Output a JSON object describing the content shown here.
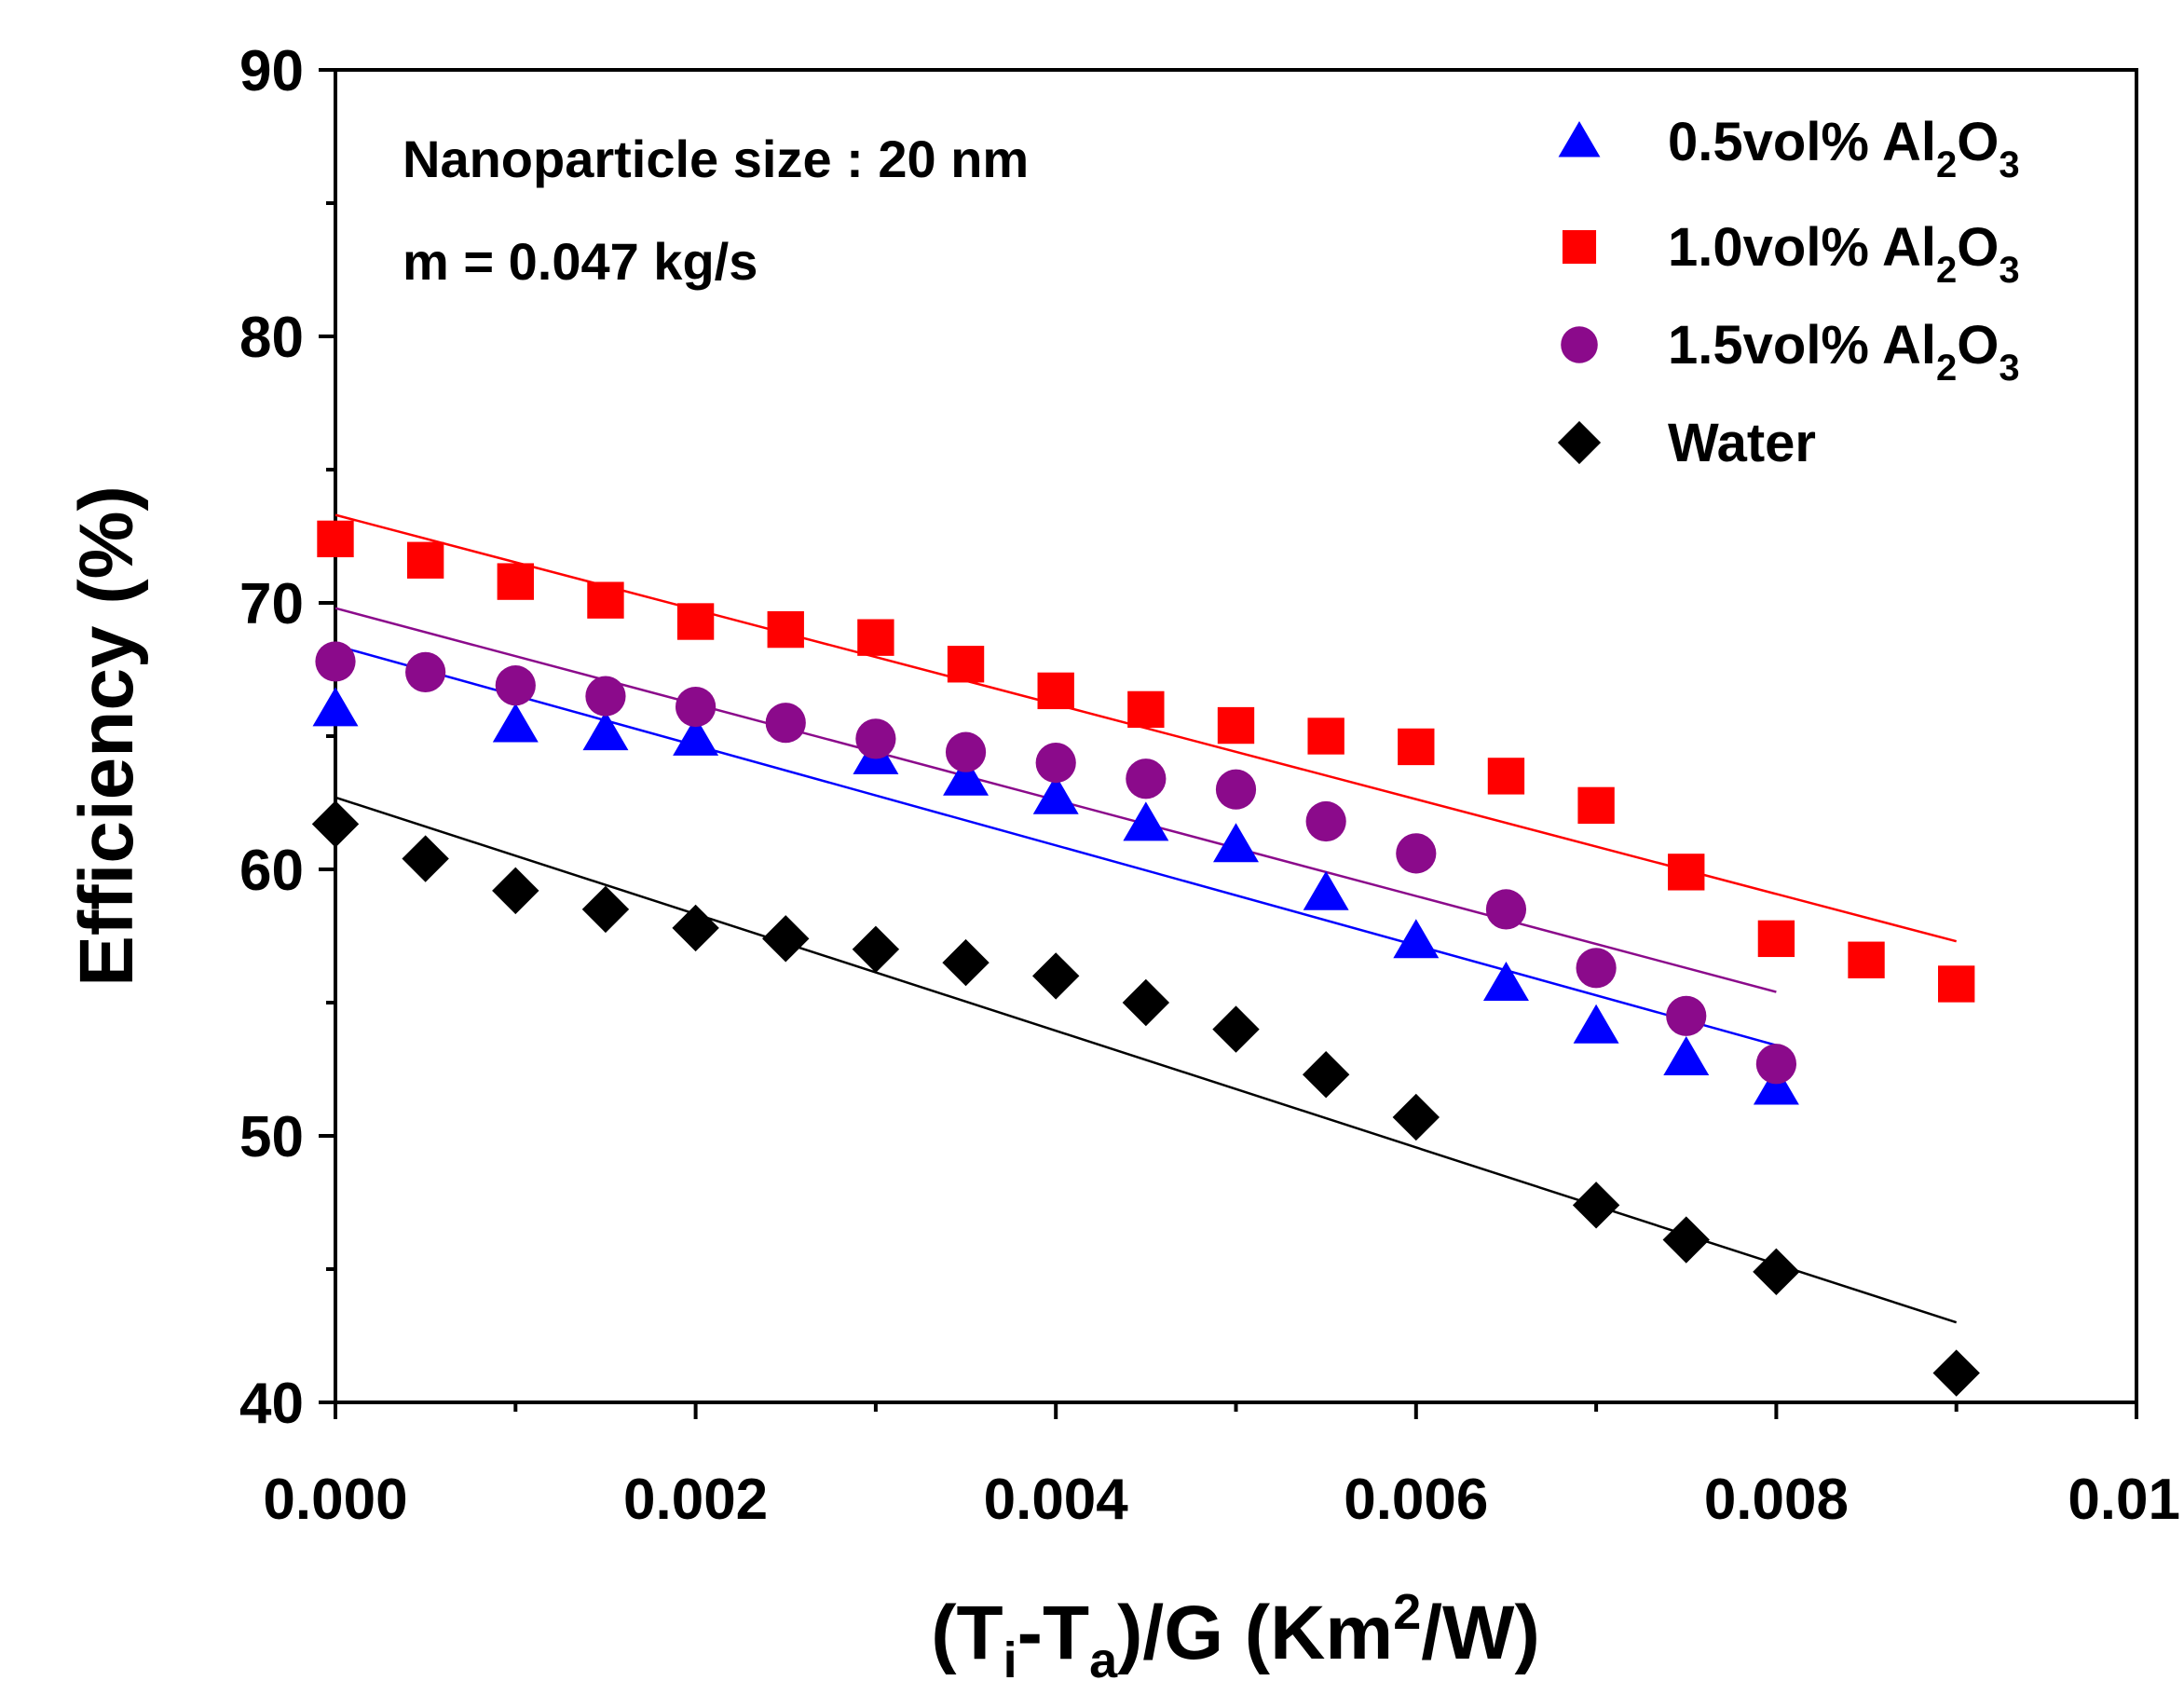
{
  "chart_data": {
    "type": "scatter",
    "title": "",
    "xlabel": {
      "pre": "(T",
      "sub1": "i",
      "mid": "-T",
      "sub2": "a",
      "post1": ")/G (Km",
      "sup": "2",
      "post2": "/W)"
    },
    "ylabel": "Efficiency (%)",
    "xlim": [
      0,
      0.01
    ],
    "ylim": [
      40,
      90
    ],
    "x_ticks": [
      "0.000",
      "0.002",
      "0.004",
      "0.006",
      "0.008",
      "0.01"
    ],
    "x_tick_values": [
      0,
      0.002,
      0.004,
      0.006,
      0.008,
      0.01
    ],
    "y_ticks": [
      "40",
      "50",
      "60",
      "70",
      "80",
      "90"
    ],
    "y_tick_values": [
      40,
      50,
      60,
      70,
      80,
      90
    ],
    "annotations": [
      "Nanoparticle size : 20 nm",
      "m = 0.047 kg/s"
    ],
    "legend_position": "top-right",
    "series": [
      {
        "name": {
          "pre": "0.5vol% Al",
          "sub1": "2",
          "mid": "O",
          "sub2": "3"
        },
        "marker": "triangle",
        "color": "#0000ff",
        "x": [
          0,
          0.001,
          0.0015,
          0.002,
          0.003,
          0.0035,
          0.004,
          0.0045,
          0.005,
          0.0055,
          0.006,
          0.0065,
          0.007,
          0.0075,
          0.008
        ],
        "y": [
          66.0,
          65.4,
          65.1,
          64.9,
          64.2,
          63.4,
          62.7,
          61.7,
          60.9,
          59.1,
          57.3,
          55.7,
          54.1,
          52.9,
          51.8
        ],
        "fit": {
          "x": [
            0,
            0.008
          ],
          "y": [
            68.4,
            53.4
          ]
        }
      },
      {
        "name": {
          "pre": "1.0vol% Al",
          "sub1": "2",
          "mid": "O",
          "sub2": "3"
        },
        "marker": "square",
        "color": "#ff0000",
        "x": [
          0,
          0.0005,
          0.001,
          0.0015,
          0.002,
          0.0025,
          0.003,
          0.0035,
          0.004,
          0.0045,
          0.005,
          0.0055,
          0.006,
          0.0065,
          0.007,
          0.0075,
          0.008,
          0.0085,
          0.009
        ],
        "y": [
          72.4,
          71.6,
          70.8,
          70.1,
          69.3,
          69.0,
          68.7,
          67.7,
          66.7,
          66.0,
          65.4,
          65.0,
          64.6,
          63.5,
          62.4,
          59.9,
          57.4,
          56.6,
          55.7
        ],
        "fit": {
          "x": [
            0,
            0.009
          ],
          "y": [
            73.3,
            57.3
          ]
        }
      },
      {
        "name": {
          "pre": "1.5vol% Al",
          "sub1": "2",
          "mid": "O",
          "sub2": "3"
        },
        "marker": "circle",
        "color": "#8b0a8b",
        "x": [
          0,
          0.0005,
          0.001,
          0.0015,
          0.002,
          0.0025,
          0.003,
          0.0035,
          0.004,
          0.0045,
          0.005,
          0.0055,
          0.006,
          0.0065,
          0.007,
          0.0075,
          0.008
        ],
        "y": [
          67.8,
          67.4,
          66.9,
          66.5,
          66.1,
          65.5,
          64.9,
          64.4,
          64.0,
          63.4,
          63.0,
          61.8,
          60.6,
          58.5,
          56.3,
          54.5,
          52.7
        ],
        "fit": {
          "x": [
            0,
            0.008
          ],
          "y": [
            69.8,
            55.4
          ]
        }
      },
      {
        "name": {
          "pre": "Water",
          "sub1": "",
          "mid": "",
          "sub2": ""
        },
        "marker": "diamond",
        "color": "#000000",
        "x": [
          0,
          0.0005,
          0.001,
          0.0015,
          0.002,
          0.0025,
          0.003,
          0.0035,
          0.004,
          0.0045,
          0.005,
          0.0055,
          0.006,
          0.007,
          0.0075,
          0.008,
          0.009
        ],
        "y": [
          61.7,
          60.4,
          59.2,
          58.5,
          57.8,
          57.4,
          57.0,
          56.5,
          56.0,
          55.0,
          54.0,
          52.3,
          50.7,
          47.4,
          46.1,
          44.9,
          41.1
        ],
        "fit": {
          "x": [
            0,
            0.009
          ],
          "y": [
            62.7,
            43.0
          ]
        }
      }
    ]
  }
}
